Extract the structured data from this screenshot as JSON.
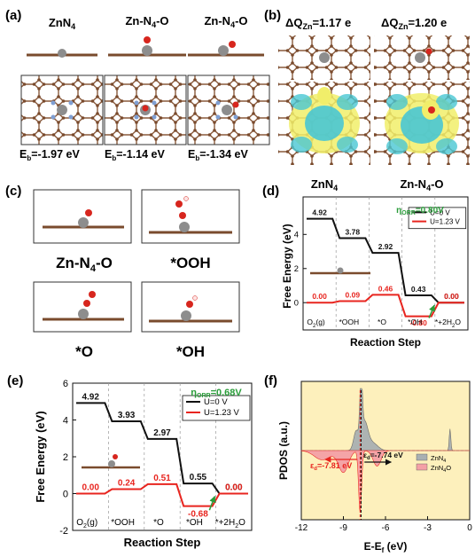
{
  "panels": {
    "a": {
      "letter": "(a)",
      "titles": [
        "ZnN4",
        "Zn-N4-O",
        "Zn-N4-O"
      ],
      "energies": [
        "-1.97 eV",
        "-1.14 eV",
        "-1.34 eV"
      ],
      "eb_label": "E",
      "eb_sub": "b"
    },
    "b": {
      "letter": "(b)",
      "charges": [
        "ΔQ",
        "=1.17 e",
        "=1.20 e"
      ],
      "charge_sub": "Zn",
      "labels": [
        "ZnN4",
        "Zn-N4-O"
      ]
    },
    "c": {
      "letter": "(c)",
      "labels": [
        "Zn-N4-O",
        "*OOH",
        "*O",
        "*OH"
      ]
    },
    "d": {
      "letter": "(d)",
      "eta": "η",
      "eta_sub": "ORR",
      "eta_value": "=0.80V"
    },
    "e": {
      "letter": "(e)",
      "eta": "η",
      "eta_sub": "ORR",
      "eta_value": "=0.68V"
    },
    "f": {
      "letter": "(f)",
      "ylabel": "PDOS (a.u.)",
      "xlabel": "E-E",
      "xlabel_sub": "f",
      "xlabel_unit": " (eV)",
      "xticks": [
        "-12",
        "-9",
        "-6",
        "-3",
        "0"
      ],
      "legend": [
        "ZnN4",
        "ZnN4O"
      ],
      "annotations": [
        "ε",
        "d",
        "=-7.81 eV",
        "=-7.74 eV"
      ]
    }
  },
  "chart_data": [
    {
      "type": "line",
      "panel": "d",
      "ylabel": "Free Energy (eV)",
      "xlabel": "Reaction Step",
      "categories": [
        "O2(g)",
        "*OOH",
        "*O",
        "*OH",
        "+2H2O"
      ],
      "category_labels": [
        "O",
        "2",
        "(g)",
        "*OOH",
        "*O",
        "*OH",
        "*+2H",
        "2",
        "O"
      ],
      "yticks": [
        "4",
        "2",
        "0"
      ],
      "ylim": [
        -1.6,
        6.2
      ],
      "series": [
        {
          "name": "U=0 V",
          "color": "#111111",
          "values": [
            4.92,
            3.78,
            2.92,
            0.43,
            0.0
          ],
          "labels": [
            "4.92",
            "3.78",
            "2.92",
            "0.43",
            "0.00"
          ]
        },
        {
          "name": "U=1.23 V",
          "color": "#e8251f",
          "values": [
            0.0,
            0.09,
            0.46,
            -0.8,
            0.0
          ],
          "labels": [
            "0.00",
            "0.09",
            "0.46",
            "-0.80",
            "0.00"
          ]
        }
      ]
    },
    {
      "type": "line",
      "panel": "e",
      "ylabel": "Free Energy (eV)",
      "xlabel": "Reaction Step",
      "categories": [
        "O2(g)",
        "*OOH",
        "*O",
        "*OH",
        "+2H2O"
      ],
      "category_labels": [
        "O",
        "2",
        "(g)",
        "*OOH",
        "*O",
        "*OH",
        "*+2H",
        "2",
        "O"
      ],
      "yticks": [
        "6",
        "4",
        "2",
        "0",
        "-2"
      ],
      "ylim": [
        -2,
        6
      ],
      "series": [
        {
          "name": "U=0 V",
          "color": "#111111",
          "values": [
            4.92,
            3.93,
            2.97,
            0.55,
            0.0
          ],
          "labels": [
            "4.92",
            "3.93",
            "2.97",
            "0.55",
            "0.00"
          ]
        },
        {
          "name": "U=1.23 V",
          "color": "#e8251f",
          "values": [
            0.0,
            0.24,
            0.51,
            -0.68,
            0.0
          ],
          "labels": [
            "0.00",
            "0.24",
            "0.51",
            "-0.68",
            "0.00"
          ]
        }
      ]
    },
    {
      "type": "area",
      "panel": "f",
      "xlim": [
        -12,
        0
      ],
      "series": [
        {
          "name": "ZnN4",
          "color": "#a9b0b2",
          "centers": [
            -7.74,
            -7.5,
            -8.1,
            -6.9,
            -1.4
          ]
        },
        {
          "name": "ZnN4O",
          "color": "#f4a0a6",
          "centers": [
            -7.81,
            -9.0,
            -6.6,
            -10.5
          ]
        }
      ]
    }
  ]
}
